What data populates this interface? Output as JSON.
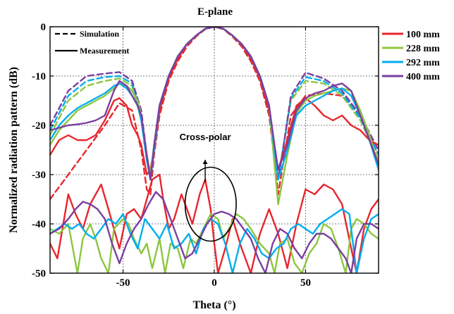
{
  "chart_data": {
    "type": "line",
    "title": "E-plane",
    "xlabel": "Theta (°)",
    "ylabel": "Normalized radiation pattern (dB)",
    "xlim": [
      -90,
      90
    ],
    "ylim": [
      -50,
      0
    ],
    "xticks": [
      -50,
      0,
      50
    ],
    "yticks": [
      0,
      -10,
      -20,
      -30,
      -40,
      -50
    ],
    "grid": true,
    "style_legend": {
      "placement": "top-left",
      "dashed": "Simulation",
      "solid": "Measurement"
    },
    "color_legend": {
      "placement": "outside-right"
    },
    "annotation": {
      "text": "Cross-polar",
      "x": -5,
      "y": -23
    },
    "annotation_ellipse": {
      "cx": -2,
      "cy": -36,
      "rx": 14,
      "ry": 7.5
    },
    "arrow": {
      "from": [
        -5,
        -27
      ],
      "to": [
        -5,
        -31.5
      ]
    },
    "series": [
      {
        "name": "100 mm",
        "color": "#e8262d",
        "style": "dashed",
        "x": [
          -90,
          -80,
          -70,
          -60,
          -52,
          -45,
          -40,
          -37,
          -35,
          -33,
          -30,
          -25,
          -20,
          -15,
          -10,
          -5,
          0,
          5,
          10,
          15,
          20,
          25,
          30,
          33,
          35,
          38,
          42,
          50,
          60,
          70,
          80,
          90
        ],
        "y": [
          -35,
          -30,
          -25,
          -20,
          -15.5,
          -17,
          -25,
          -33,
          -34,
          -26,
          -18,
          -11,
          -7,
          -4,
          -2,
          -0.5,
          0,
          -0.5,
          -2,
          -4,
          -7,
          -11,
          -18,
          -27,
          -34,
          -27,
          -18,
          -14,
          -13.5,
          -14,
          -18,
          -26
        ]
      },
      {
        "name": "228 mm",
        "color": "#8dc63f",
        "style": "dashed",
        "x": [
          -90,
          -80,
          -70,
          -60,
          -52,
          -45,
          -40,
          -37,
          -35,
          -33,
          -30,
          -25,
          -20,
          -15,
          -10,
          -5,
          0,
          5,
          10,
          15,
          20,
          25,
          30,
          33,
          35,
          38,
          42,
          50,
          60,
          70,
          80,
          90
        ],
        "y": [
          -22,
          -15,
          -12,
          -11,
          -10.5,
          -12,
          -19,
          -27,
          -31,
          -24,
          -16,
          -10,
          -6,
          -3.5,
          -1.8,
          -0.4,
          0,
          -0.4,
          -1.8,
          -3.5,
          -6,
          -10,
          -16,
          -25,
          -31,
          -24,
          -15,
          -11,
          -11.5,
          -14,
          -19,
          -27
        ]
      },
      {
        "name": "292 mm",
        "color": "#00aeef",
        "style": "dashed",
        "x": [
          -90,
          -80,
          -70,
          -60,
          -52,
          -45,
          -40,
          -37,
          -35,
          -33,
          -30,
          -25,
          -20,
          -15,
          -10,
          -5,
          0,
          5,
          10,
          15,
          20,
          25,
          30,
          33,
          35,
          38,
          42,
          50,
          60,
          70,
          80,
          90
        ],
        "y": [
          -21,
          -14,
          -11,
          -10.2,
          -10,
          -11.5,
          -18,
          -27,
          -31,
          -24,
          -16,
          -10,
          -6,
          -3.5,
          -1.8,
          -0.4,
          0,
          -0.4,
          -1.8,
          -3.5,
          -6,
          -10,
          -16,
          -25,
          -31,
          -24,
          -14.5,
          -10.2,
          -11,
          -13.5,
          -18.5,
          -26
        ]
      },
      {
        "name": "400 mm",
        "color": "#7b3fa0",
        "style": "dashed",
        "x": [
          -90,
          -80,
          -70,
          -60,
          -52,
          -45,
          -40,
          -37,
          -35,
          -33,
          -30,
          -25,
          -20,
          -15,
          -10,
          -5,
          0,
          5,
          10,
          15,
          20,
          25,
          30,
          33,
          35,
          38,
          42,
          50,
          60,
          70,
          80,
          90
        ],
        "y": [
          -20,
          -13,
          -10,
          -9.5,
          -9.2,
          -11,
          -17,
          -26,
          -31,
          -24,
          -16,
          -10,
          -6,
          -3.5,
          -1.8,
          -0.4,
          0,
          -0.4,
          -1.8,
          -3.5,
          -6,
          -10,
          -16,
          -25,
          -31,
          -24,
          -14,
          -9.3,
          -10.5,
          -13,
          -18,
          -25
        ]
      },
      {
        "name": "100 mm",
        "color": "#e8262d",
        "style": "solid",
        "x": [
          -90,
          -85,
          -80,
          -75,
          -70,
          -65,
          -60,
          -55,
          -52,
          -48,
          -45,
          -42,
          -40,
          -37,
          -35,
          -33,
          -30,
          -25,
          -20,
          -15,
          -10,
          -5,
          0,
          5,
          10,
          15,
          20,
          25,
          30,
          33,
          35,
          40,
          45,
          50,
          55,
          60,
          65,
          70,
          75,
          80,
          85,
          90
        ],
        "y": [
          -26,
          -23,
          -22,
          -23,
          -23,
          -22,
          -19,
          -15,
          -14.5,
          -16,
          -20,
          -22,
          -24,
          -30,
          -29,
          -25,
          -17,
          -10.5,
          -6.5,
          -3.5,
          -1.8,
          -0.4,
          0,
          -0.4,
          -1.8,
          -3.5,
          -6.5,
          -10.5,
          -17,
          -25,
          -29,
          -23,
          -16,
          -14.5,
          -16,
          -18,
          -19,
          -18,
          -20,
          -21,
          -23,
          -24
        ]
      },
      {
        "name": "228 mm",
        "color": "#8dc63f",
        "style": "solid",
        "x": [
          -90,
          -85,
          -80,
          -75,
          -70,
          -65,
          -60,
          -55,
          -52,
          -48,
          -45,
          -42,
          -40,
          -37,
          -35,
          -33,
          -30,
          -25,
          -20,
          -15,
          -10,
          -5,
          0,
          5,
          10,
          15,
          20,
          25,
          30,
          33,
          35,
          40,
          45,
          50,
          55,
          60,
          65,
          70,
          75,
          80,
          85,
          90
        ],
        "y": [
          -24,
          -21,
          -19,
          -17,
          -16,
          -15,
          -14,
          -12.5,
          -11.5,
          -12,
          -13,
          -15,
          -18,
          -26,
          -30,
          -24,
          -16,
          -10,
          -6,
          -3.5,
          -1.8,
          -0.4,
          0,
          -0.4,
          -1.8,
          -3.5,
          -6,
          -10,
          -16,
          -28,
          -36,
          -26,
          -17.5,
          -15,
          -14,
          -13.5,
          -13,
          -12.5,
          -13,
          -17,
          -22,
          -28
        ]
      },
      {
        "name": "292 mm",
        "color": "#00aeef",
        "style": "solid",
        "x": [
          -90,
          -85,
          -80,
          -75,
          -70,
          -65,
          -60,
          -55,
          -52,
          -48,
          -45,
          -42,
          -40,
          -37,
          -35,
          -33,
          -30,
          -25,
          -20,
          -15,
          -10,
          -5,
          0,
          5,
          10,
          15,
          20,
          25,
          30,
          33,
          35,
          40,
          45,
          50,
          55,
          60,
          65,
          70,
          75,
          80,
          85,
          90
        ],
        "y": [
          -23,
          -20,
          -18,
          -16.5,
          -15.5,
          -14.5,
          -13.5,
          -12,
          -11.5,
          -12.5,
          -14,
          -16,
          -19,
          -27,
          -31,
          -25,
          -16,
          -10,
          -6,
          -3.5,
          -1.8,
          -0.4,
          0,
          -0.4,
          -1.8,
          -3.5,
          -6,
          -10,
          -16,
          -25,
          -31,
          -25,
          -18,
          -16,
          -15,
          -14,
          -13,
          -12.5,
          -14,
          -18,
          -23,
          -29
        ]
      },
      {
        "name": "400 mm",
        "color": "#7b3fa0",
        "style": "solid",
        "x": [
          -90,
          -85,
          -80,
          -75,
          -70,
          -65,
          -60,
          -55,
          -52,
          -48,
          -45,
          -42,
          -40,
          -37,
          -35,
          -33,
          -30,
          -25,
          -20,
          -15,
          -10,
          -5,
          0,
          5,
          10,
          15,
          20,
          25,
          30,
          33,
          35,
          40,
          45,
          50,
          55,
          60,
          65,
          70,
          75,
          80,
          85,
          90
        ],
        "y": [
          -21,
          -20.5,
          -20,
          -19.8,
          -19.5,
          -19,
          -18,
          -13,
          -11,
          -12,
          -14,
          -16,
          -18,
          -26,
          -31,
          -24,
          -16,
          -10,
          -6,
          -3.5,
          -1.8,
          -0.4,
          0,
          -0.4,
          -1.8,
          -3.5,
          -6,
          -10,
          -16,
          -24,
          -29,
          -24,
          -17,
          -14.5,
          -13.5,
          -13,
          -12,
          -11.5,
          -13,
          -18,
          -23,
          -28
        ]
      },
      {
        "name": "100 mm",
        "color": "#e8262d",
        "style": "solid",
        "group": "cross-polar",
        "x": [
          -90,
          -86,
          -80,
          -76,
          -72,
          -68,
          -62,
          -58,
          -52,
          -48,
          -44,
          -40,
          -37,
          -34,
          -30,
          -28,
          -25,
          -22,
          -18,
          -15,
          -12,
          -8,
          -5,
          -2,
          0,
          2,
          6,
          10,
          15,
          20,
          25,
          30,
          35,
          40,
          45,
          50,
          55,
          60,
          65,
          70,
          75,
          78,
          82,
          86,
          90
        ],
        "y": [
          -44,
          -47,
          -34,
          -38,
          -41,
          -36,
          -32,
          -37,
          -45,
          -38,
          -37,
          -39,
          -35,
          -31,
          -30,
          -35,
          -41,
          -39,
          -34,
          -37,
          -40,
          -34,
          -31,
          -37,
          -44,
          -50,
          -45,
          -39,
          -45,
          -50,
          -42,
          -37,
          -42,
          -49,
          -40,
          -33,
          -34,
          -32,
          -33,
          -36,
          -45,
          -50,
          -41,
          -37,
          -35
        ]
      },
      {
        "name": "228 mm",
        "color": "#8dc63f",
        "style": "solid",
        "group": "cross-polar",
        "x": [
          -90,
          -85,
          -80,
          -78,
          -75,
          -72,
          -68,
          -65,
          -62,
          -58,
          -55,
          -50,
          -47,
          -44,
          -40,
          -37,
          -34,
          -30,
          -27,
          -24,
          -20,
          -17,
          -13,
          -10,
          -6,
          -2,
          2,
          5,
          8,
          12,
          16,
          20,
          25,
          30,
          33,
          36,
          40,
          44,
          48,
          52,
          56,
          60,
          64,
          68,
          72,
          75,
          78,
          82,
          86,
          90
        ],
        "y": [
          -41,
          -42,
          -40,
          -44,
          -50,
          -43,
          -40,
          -43,
          -47,
          -50,
          -41,
          -39,
          -40,
          -43,
          -46,
          -44,
          -49,
          -43,
          -50,
          -44,
          -45,
          -49,
          -43,
          -44,
          -41,
          -38,
          -39,
          -43,
          -41,
          -38,
          -39,
          -41,
          -44,
          -46,
          -50,
          -44,
          -43,
          -48,
          -50,
          -46,
          -44,
          -40,
          -41,
          -45,
          -50,
          -41,
          -39,
          -40,
          -42,
          -43
        ]
      },
      {
        "name": "292 mm",
        "color": "#00aeef",
        "style": "solid",
        "group": "cross-polar",
        "x": [
          -90,
          -86,
          -82,
          -78,
          -74,
          -70,
          -66,
          -62,
          -58,
          -54,
          -50,
          -46,
          -42,
          -38,
          -34,
          -30,
          -26,
          -22,
          -18,
          -14,
          -10,
          -6,
          -2,
          2,
          6,
          10,
          14,
          18,
          22,
          26,
          30,
          34,
          38,
          42,
          46,
          50,
          54,
          58,
          62,
          66,
          70,
          74,
          78,
          82,
          86,
          90
        ],
        "y": [
          -42,
          -41,
          -40,
          -41,
          -40,
          -42,
          -43,
          -41,
          -39,
          -40,
          -38,
          -42,
          -45,
          -39,
          -41,
          -43,
          -40,
          -45,
          -44,
          -42,
          -46,
          -41,
          -39,
          -40,
          -44,
          -50,
          -44,
          -41,
          -43,
          -46,
          -47,
          -45,
          -44,
          -41,
          -40,
          -41,
          -42,
          -40,
          -39,
          -38,
          -37,
          -38,
          -50,
          -43,
          -39,
          -38
        ]
      },
      {
        "name": "400 mm",
        "color": "#7b3fa0",
        "style": "solid",
        "group": "cross-polar",
        "x": [
          -90,
          -85,
          -80,
          -76,
          -72,
          -68,
          -64,
          -60,
          -56,
          -52,
          -48,
          -44,
          -40,
          -36,
          -32,
          -28,
          -24,
          -20,
          -16,
          -12,
          -8,
          -4,
          0,
          4,
          8,
          12,
          16,
          20,
          24,
          28,
          32,
          36,
          40,
          44,
          48,
          52,
          56,
          60,
          64,
          68,
          72,
          75,
          78,
          82,
          86,
          90
        ],
        "y": [
          -42,
          -41,
          -39,
          -37,
          -35.5,
          -36,
          -37,
          -39,
          -44,
          -48,
          -44,
          -41,
          -39,
          -36,
          -33.5,
          -35,
          -39,
          -43,
          -47,
          -46,
          -43,
          -40,
          -38,
          -37.5,
          -38,
          -39,
          -41,
          -43,
          -47,
          -50,
          -44,
          -41,
          -42,
          -45,
          -47,
          -44,
          -42,
          -42,
          -43,
          -45,
          -47,
          -50,
          -43,
          -40,
          -40,
          -41
        ]
      }
    ]
  }
}
